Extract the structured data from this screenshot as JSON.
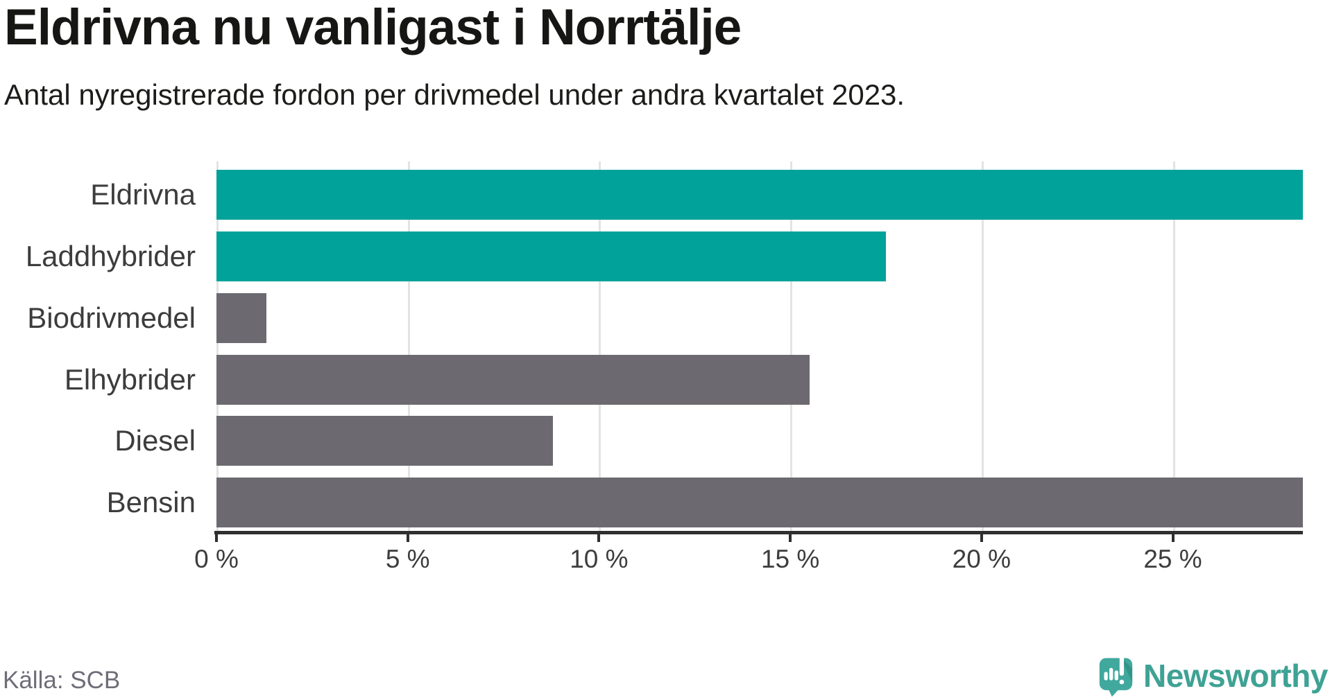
{
  "header": {
    "title": "Eldrivna nu vanligast i Norrtälje",
    "subtitle": "Antal nyregistrerade fordon per drivmedel under andra kvartalet 2023."
  },
  "chart_data": {
    "type": "bar",
    "orientation": "horizontal",
    "title": "Eldrivna nu vanligast i Norrtälje",
    "subtitle": "Antal nyregistrerade fordon per drivmedel under andra kvartalet 2023.",
    "categories": [
      "Eldrivna",
      "Laddhybrider",
      "Biodrivmedel",
      "Elhybrider",
      "Diesel",
      "Bensin"
    ],
    "values": [
      28.4,
      17.5,
      1.3,
      15.5,
      8.8,
      28.4
    ],
    "unit": "%",
    "bar_colors": [
      "#00a29a",
      "#00a29a",
      "#6c6a70",
      "#6c6a70",
      "#6c6a70",
      "#6c6a70"
    ],
    "highlight_color": "#00a29a",
    "default_color": "#6c6a70",
    "xlabel": "",
    "ylabel": "",
    "xlim": [
      0,
      28.4
    ],
    "x_ticks": [
      0,
      5,
      10,
      15,
      20,
      25
    ],
    "x_tick_labels": [
      "0 %",
      "5 %",
      "10 %",
      "15 %",
      "20 %",
      "25 %"
    ],
    "grid": true,
    "grid_color": "#e3e3e3",
    "axis_color": "#2f2f2f",
    "legend": "none"
  },
  "footer": {
    "source": "Källa: SCB",
    "logo_text": "Newsworthy",
    "logo_color": "#3ea294",
    "logo_icon_color": "#41a89e",
    "logo_icon_shade_color": "#33948a"
  }
}
